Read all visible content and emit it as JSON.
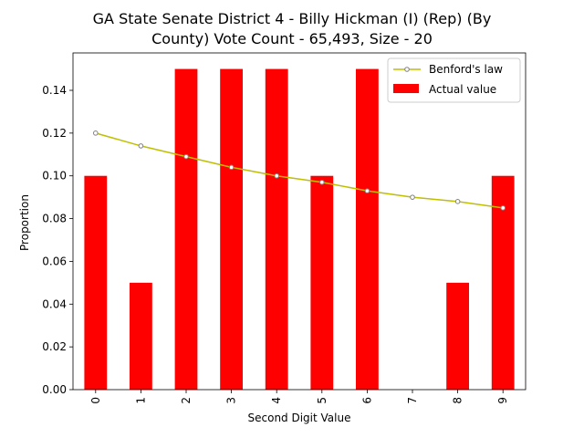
{
  "chart_data": {
    "type": "bar",
    "title_lines": [
      "GA State Senate District 4 - Billy Hickman (I) (Rep) (By",
      "County) Vote Count - 65,493, Size - 20"
    ],
    "xlabel": "Second Digit Value",
    "ylabel": "Proportion",
    "categories": [
      "0",
      "1",
      "2",
      "3",
      "4",
      "5",
      "6",
      "7",
      "8",
      "9"
    ],
    "ylim": [
      0,
      0.1575
    ],
    "yticks": [
      "0.00",
      "0.02",
      "0.04",
      "0.06",
      "0.08",
      "0.10",
      "0.12",
      "0.14"
    ],
    "grid": false,
    "legend_position": "top-right",
    "series": [
      {
        "name": "Benford's law",
        "type": "line",
        "color": "#bfbf00",
        "marker": "circle",
        "values": [
          0.12,
          0.114,
          0.109,
          0.104,
          0.1,
          0.097,
          0.093,
          0.09,
          0.088,
          0.085
        ]
      },
      {
        "name": "Actual value",
        "type": "bar",
        "color": "#ff0000",
        "values": [
          0.1,
          0.05,
          0.15,
          0.15,
          0.15,
          0.1,
          0.15,
          0.0,
          0.05,
          0.1
        ]
      }
    ]
  }
}
